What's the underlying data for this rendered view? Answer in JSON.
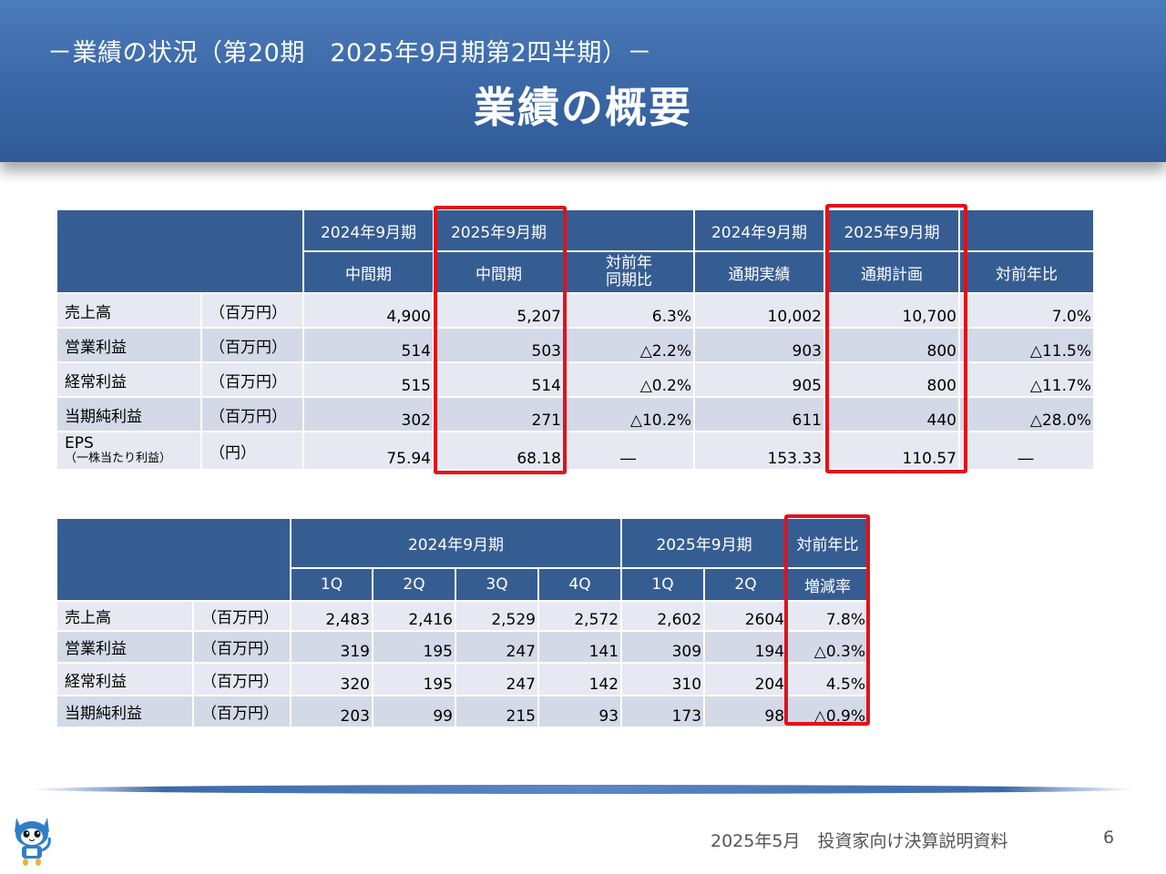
{
  "header": {
    "subtitle": "－業績の状況（第20期　2025年9月期第2四半期）－",
    "title": "業績の概要"
  },
  "table1": {
    "group_headers": [
      "2024年9月期",
      "2025年9月期",
      "",
      "2024年9月期",
      "2025年9月期",
      ""
    ],
    "sub_headers": [
      "中間期",
      "中間期",
      "対前年\n同期比",
      "通期実績",
      "通期計画",
      "対前年比"
    ],
    "sub_header_2_lines": [
      "対前年",
      "同期比"
    ],
    "rows": [
      {
        "label": "売上高",
        "unit": "（百万円）",
        "values": [
          "4,900",
          "5,207",
          "6.3%",
          "10,002",
          "10,700",
          "7.0%"
        ]
      },
      {
        "label": "営業利益",
        "unit": "（百万円）",
        "values": [
          "514",
          "503",
          "△2.2%",
          "903",
          "800",
          "△11.5%"
        ]
      },
      {
        "label": "経常利益",
        "unit": "（百万円）",
        "values": [
          "515",
          "514",
          "△0.2%",
          "905",
          "800",
          "△11.7%"
        ]
      },
      {
        "label": "当期純利益",
        "unit": "（百万円）",
        "values": [
          "302",
          "271",
          "△10.2%",
          "611",
          "440",
          "△28.0%"
        ]
      },
      {
        "label": "EPS",
        "label_sub": "（一株当たり利益）",
        "unit": "（円）",
        "values": [
          "75.94",
          "68.18",
          "―",
          "153.33",
          "110.57",
          "―"
        ]
      }
    ]
  },
  "table2": {
    "group_headers": [
      "2024年9月期",
      "2025年9月期",
      "対前年比"
    ],
    "sub_headers": [
      "1Q",
      "2Q",
      "3Q",
      "4Q",
      "1Q",
      "2Q",
      "増減率"
    ],
    "rows": [
      {
        "label": "売上高",
        "unit": "（百万円）",
        "values": [
          "2,483",
          "2,416",
          "2,529",
          "2,572",
          "2,602",
          "2604",
          "7.8%"
        ]
      },
      {
        "label": "営業利益",
        "unit": "（百万円）",
        "values": [
          "319",
          "195",
          "247",
          "141",
          "309",
          "194",
          "△0.3%"
        ]
      },
      {
        "label": "経常利益",
        "unit": "（百万円）",
        "values": [
          "320",
          "195",
          "247",
          "142",
          "310",
          "204",
          "4.5%"
        ]
      },
      {
        "label": "当期純利益",
        "unit": "（百万円）",
        "values": [
          "203",
          "99",
          "215",
          "93",
          "173",
          "98",
          "△0.9%"
        ]
      }
    ]
  },
  "footer": {
    "text": "2025年5月　投資家向け決算説明資料",
    "page": "6"
  },
  "colors": {
    "header_blue": "#3d6aa8",
    "table_header": "#365d92",
    "row_light": "#e6e9f1",
    "row_dark": "#d3d9e7",
    "highlight_red": "#e2111a"
  },
  "icons": {
    "mascot": "cat-mascot-icon"
  }
}
